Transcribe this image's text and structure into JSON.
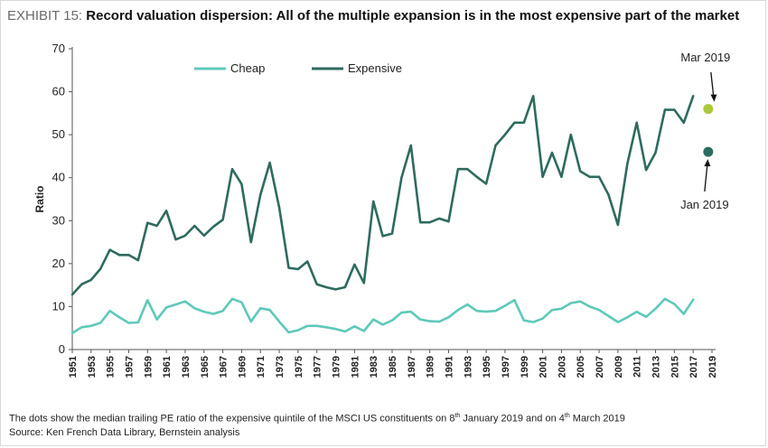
{
  "exhibit_label": "EXHIBIT 15:",
  "title": "Record valuation dispersion: All of the multiple expansion is in the most expensive part of the market",
  "footnote": {
    "pre": "The dots show the median trailing PE ratio of the expensive quintile of the MSCI US constituents on 8",
    "sup1": "th",
    "mid": " January 2019 and on 4",
    "sup2": "th",
    "post": " March 2019"
  },
  "source": "Source: Ken French Data Library, Bernstein analysis",
  "colors": {
    "cheap": "#5ec9b8",
    "expensive": "#2e6b5f",
    "mar_dot": "#a9c93a",
    "jan_dot": "#2e6b5f",
    "axis": "#555555"
  },
  "chart_data": {
    "type": "line",
    "title": "",
    "xlabel": "",
    "ylabel": "Ratio",
    "ylim": [
      0,
      70
    ],
    "yticks": [
      0,
      10,
      20,
      30,
      40,
      50,
      60,
      70
    ],
    "xlim": [
      1951,
      2019
    ],
    "xticks": [
      1951,
      1953,
      1955,
      1957,
      1959,
      1961,
      1963,
      1965,
      1967,
      1969,
      1971,
      1973,
      1975,
      1977,
      1979,
      1981,
      1983,
      1985,
      1987,
      1989,
      1991,
      1993,
      1995,
      1997,
      1999,
      2001,
      2003,
      2005,
      2007,
      2009,
      2011,
      2013,
      2015,
      2017,
      2019
    ],
    "grid": false,
    "legend": "top-left",
    "x": [
      1951,
      1952,
      1953,
      1954,
      1955,
      1956,
      1957,
      1958,
      1959,
      1960,
      1961,
      1962,
      1963,
      1964,
      1965,
      1966,
      1967,
      1968,
      1969,
      1970,
      1971,
      1972,
      1973,
      1974,
      1975,
      1976,
      1977,
      1978,
      1979,
      1980,
      1981,
      1982,
      1983,
      1984,
      1985,
      1986,
      1987,
      1988,
      1989,
      1990,
      1991,
      1992,
      1993,
      1994,
      1995,
      1996,
      1997,
      1998,
      1999,
      2000,
      2001,
      2002,
      2003,
      2004,
      2005,
      2006,
      2007,
      2008,
      2009,
      2010,
      2011,
      2012,
      2013,
      2014,
      2015,
      2016,
      2017
    ],
    "series": [
      {
        "name": "Cheap",
        "values": [
          3.8,
          5.2,
          5.5,
          6.2,
          9.0,
          7.5,
          6.2,
          6.3,
          11.5,
          7.0,
          9.8,
          10.5,
          11.2,
          9.6,
          8.8,
          8.3,
          9.0,
          11.8,
          11.0,
          6.5,
          9.6,
          9.2,
          6.5,
          4.0,
          4.5,
          5.5,
          5.5,
          5.2,
          4.8,
          4.2,
          5.4,
          4.3,
          7.0,
          5.8,
          6.8,
          8.6,
          8.8,
          7.0,
          6.6,
          6.5,
          7.5,
          9.2,
          10.5,
          9.0,
          8.8,
          9.0,
          10.2,
          11.5,
          6.8,
          6.4,
          7.2,
          9.2,
          9.5,
          10.8,
          11.2,
          10.0,
          9.2,
          7.8,
          6.4,
          7.5,
          8.8,
          7.6,
          9.5,
          11.8,
          10.6,
          8.3,
          11.6
        ]
      },
      {
        "name": "Expensive",
        "values": [
          12.8,
          15.2,
          16.2,
          18.8,
          23.2,
          22.0,
          22.0,
          20.8,
          29.5,
          28.8,
          32.3,
          25.6,
          26.5,
          28.8,
          26.5,
          28.6,
          30.2,
          42.0,
          38.5,
          25.0,
          36.0,
          43.5,
          33.0,
          19.0,
          18.7,
          20.5,
          15.2,
          14.5,
          14.0,
          14.5,
          19.8,
          15.5,
          34.5,
          26.4,
          27.0,
          40.0,
          47.5,
          29.6,
          29.6,
          30.5,
          29.8,
          42.0,
          42.0,
          40.2,
          38.6,
          47.5,
          50.0,
          52.8,
          52.8,
          59.0,
          40.2,
          45.8,
          40.2,
          50.0,
          41.5,
          40.2,
          40.2,
          36.0,
          29.0,
          43.2,
          52.8,
          41.8,
          45.8,
          55.8,
          55.8,
          52.8,
          59.0
        ]
      }
    ],
    "points": [
      {
        "label": "Mar 2019",
        "x": 2018.6,
        "y": 56
      },
      {
        "label": "Jan 2019",
        "x": 2018.6,
        "y": 46
      }
    ]
  }
}
